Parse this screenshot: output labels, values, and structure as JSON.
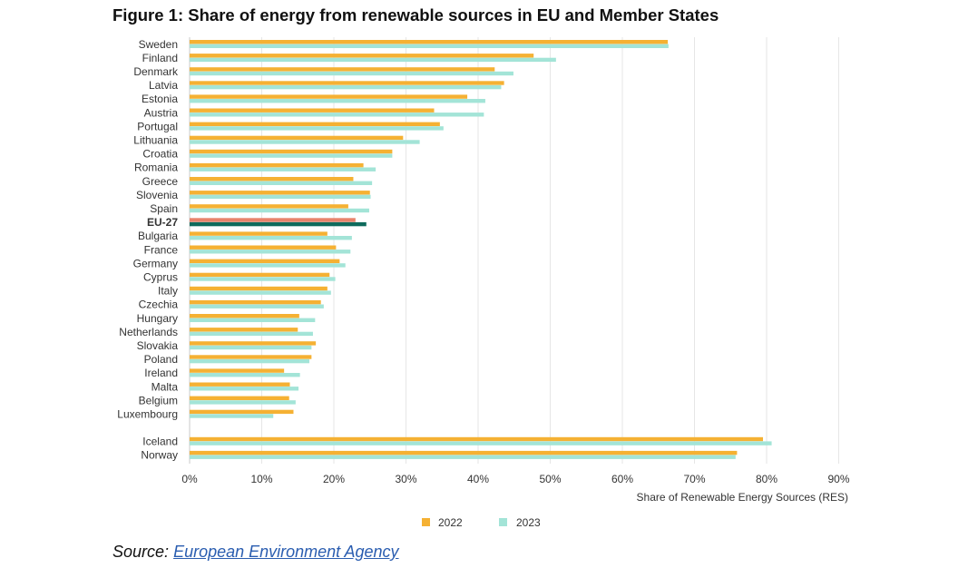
{
  "title": "Figure 1: Share of energy from renewable sources in EU and Member States",
  "source": {
    "prefix": "Source:",
    "link_text": "European Environment Agency"
  },
  "colors": {
    "y2022": "#f5b133",
    "y2023": "#a3e4d7",
    "eu2022": "#e8836b",
    "eu2023": "#0f6b5c",
    "grid": "#e6e6e6",
    "text": "#333333"
  },
  "chart_data": {
    "type": "bar",
    "orientation": "horizontal",
    "title": "Figure 1: Share of energy from renewable sources in EU and Member States",
    "xlabel": "Share of Renewable Energy Sources (RES)",
    "ylabel": "",
    "xlim": [
      0,
      90
    ],
    "xticks": [
      "0%",
      "10%",
      "20%",
      "30%",
      "40%",
      "50%",
      "60%",
      "70%",
      "80%",
      "90%"
    ],
    "grid": "vertical",
    "legend_position": "bottom",
    "categories": [
      "Sweden",
      "Finland",
      "Denmark",
      "Latvia",
      "Estonia",
      "Austria",
      "Portugal",
      "Lithuania",
      "Croatia",
      "Romania",
      "Greece",
      "Slovenia",
      "Spain",
      "EU-27",
      "Bulgaria",
      "France",
      "Germany",
      "Cyprus",
      "Italy",
      "Czechia",
      "Hungary",
      "Netherlands",
      "Slovakia",
      "Poland",
      "Ireland",
      "Malta",
      "Belgium",
      "Luxembourg",
      "Iceland",
      "Norway"
    ],
    "highlight": "EU-27",
    "series": [
      {
        "name": "2022",
        "values": [
          66.3,
          47.7,
          42.3,
          43.6,
          38.5,
          33.9,
          34.7,
          29.6,
          28.1,
          24.1,
          22.7,
          25.0,
          22.0,
          23.0,
          19.1,
          20.3,
          20.8,
          19.4,
          19.1,
          18.2,
          15.2,
          15.0,
          17.5,
          16.9,
          13.1,
          13.9,
          13.8,
          14.4,
          79.5,
          75.9
        ]
      },
      {
        "name": "2023",
        "values": [
          66.4,
          50.8,
          44.9,
          43.2,
          41.0,
          40.8,
          35.2,
          31.9,
          28.1,
          25.8,
          25.3,
          25.1,
          24.9,
          24.5,
          22.5,
          22.3,
          21.6,
          20.2,
          19.6,
          18.6,
          17.4,
          17.1,
          16.9,
          16.6,
          15.3,
          15.1,
          14.7,
          11.6,
          80.7,
          75.7
        ]
      }
    ]
  }
}
